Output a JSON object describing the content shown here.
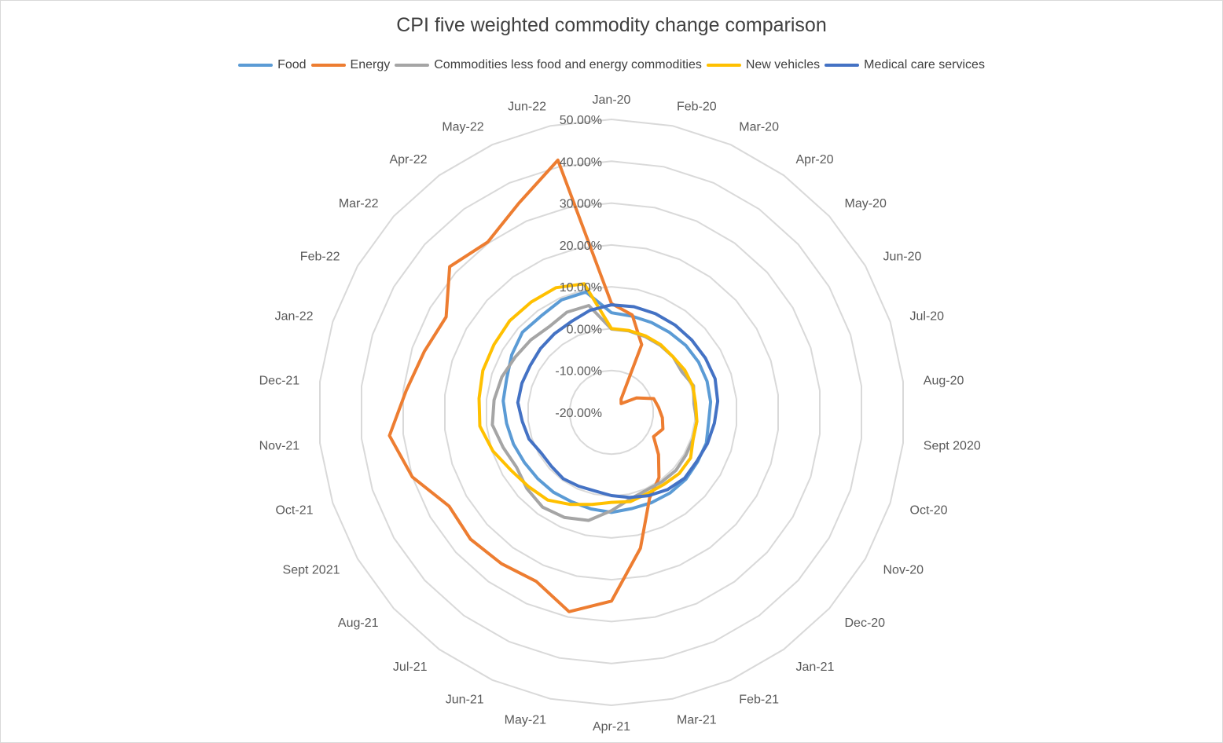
{
  "chart_data": {
    "type": "radar",
    "title": "CPI five weighted commodity change comparison",
    "categories": [
      "Jan-20",
      "Feb-20",
      "Mar-20",
      "Apr-20",
      "May-20",
      "Jun-20",
      "Jul-20",
      "Aug-20",
      "Sept 2020",
      "Oct-20",
      "Nov-20",
      "Dec-20",
      "Jan-21",
      "Feb-21",
      "Mar-21",
      "Apr-21",
      "May-21",
      "Jun-21",
      "Jul-21",
      "Aug-21",
      "Sept 2021",
      "Oct-21",
      "Nov-21",
      "Dec-21",
      "Jan-22",
      "Feb-22",
      "Mar-22",
      "Apr-22",
      "May-22",
      "Jun-22"
    ],
    "rlim": [
      -20,
      50
    ],
    "ticks": [
      "-20.00%",
      "-10.00%",
      "0.00%",
      "10.00%",
      "20.00%",
      "30.00%",
      "40.00%",
      "50.00%"
    ],
    "tick_values": [
      -20,
      -10,
      0,
      10,
      20,
      30,
      40,
      50
    ],
    "series": [
      {
        "name": "Food",
        "color": "#5b9bd5",
        "values": [
          3.8,
          3.5,
          3.5,
          3.6,
          3.9,
          4.0,
          4.0,
          3.8,
          3.3,
          3.8,
          3.7,
          3.9,
          3.8,
          3.6,
          3.5,
          3.9,
          3.6,
          3.4,
          3.6,
          3.7,
          4.0,
          4.6,
          5.2,
          6.0,
          6.3,
          7.5,
          8.6,
          8.5,
          9.4,
          9.4
        ]
      },
      {
        "name": "Energy",
        "color": "#ed7d31",
        "values": [
          6.0,
          3.8,
          -2.3,
          -16.1,
          -16.9,
          -13.1,
          -9.4,
          -8.7,
          -7.8,
          -7.1,
          -8.4,
          -4.9,
          -0.7,
          2.4,
          13.2,
          25.1,
          28.7,
          24.2,
          24.7,
          25.3,
          24.8,
          30.0,
          33.3,
          29.3,
          27.0,
          25.6,
          32.0,
          30.3,
          34.6,
          41.6
        ]
      },
      {
        "name": "Commodities less food and energy commodities",
        "color": "#a5a5a5",
        "values": [
          -0.1,
          -0.1,
          -0.2,
          -0.2,
          -0.2,
          -0.6,
          0.6,
          -0.2,
          0.5,
          0.5,
          0.5,
          0.7,
          0.5,
          0.4,
          1.2,
          3.5,
          6.4,
          7.5,
          8.0,
          7.2,
          6.2,
          7.2,
          8.6,
          8.2,
          7.5,
          6.5,
          5.9,
          5.3,
          6.2,
          6.1
        ]
      },
      {
        "name": "New vehicles",
        "color": "#ffc000",
        "values": [
          0.0,
          0.0,
          0.0,
          0.0,
          -0.2,
          0.2,
          0.4,
          0.2,
          0.5,
          0.5,
          1.8,
          1.8,
          1.3,
          1.2,
          1.8,
          1.5,
          2.5,
          4.1,
          5.9,
          6.6,
          7.7,
          9.8,
          11.6,
          11.8,
          12.3,
          12.4,
          12.7,
          12.6,
          12.6,
          11.4
        ]
      },
      {
        "name": "Medical care services",
        "color": "#4472c4",
        "values": [
          5.7,
          5.8,
          5.8,
          5.8,
          5.8,
          5.9,
          6.0,
          5.5,
          4.7,
          4.1,
          3.5,
          3.5,
          2.8,
          1.8,
          0.8,
          -0.1,
          -0.8,
          -0.7,
          -0.4,
          -0.7,
          -0.6,
          0.7,
          1.4,
          2.5,
          2.5,
          2.4,
          2.8,
          3.2,
          3.7,
          4.9
        ]
      }
    ],
    "legend_position": "top",
    "grid": true
  }
}
